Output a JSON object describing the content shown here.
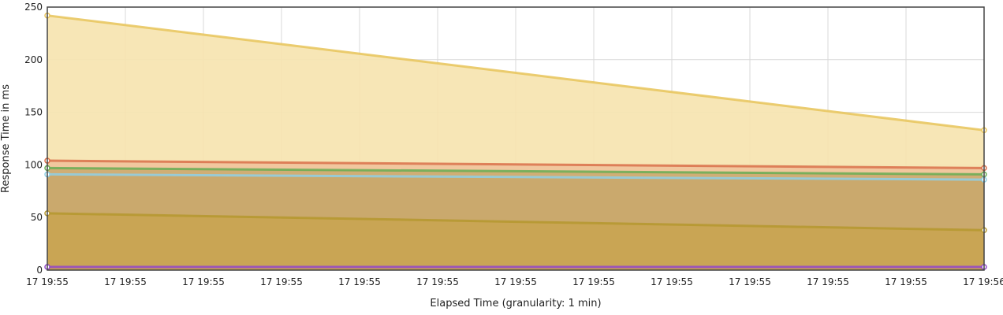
{
  "chart_data": {
    "type": "area",
    "title": "",
    "xlabel": "Elapsed Time (granularity: 1 min)",
    "ylabel": "Response Time in ms",
    "ylim": [
      0,
      250
    ],
    "yticks": [
      0,
      50,
      100,
      150,
      200,
      250
    ],
    "xtick_labels": [
      "17 19:55",
      "17 19:55",
      "17 19:55",
      "17 19:55",
      "17 19:55",
      "17 19:55",
      "17 19:55",
      "17 19:55",
      "17 19:55",
      "17 19:55",
      "17 19:55",
      "17 19:55",
      "17 19:56"
    ],
    "x": [
      "17 19:55",
      "17 19:56"
    ],
    "grid": true,
    "series": [
      {
        "color": "#e8c45a",
        "fill": "#f6e4b0",
        "values": [
          242,
          133
        ]
      },
      {
        "color": "#d9704a",
        "fill": "#f0c49c",
        "values": [
          104,
          97
        ]
      },
      {
        "color": "#69ad55",
        "fill": "#cdab72",
        "values": [
          97,
          91
        ]
      },
      {
        "color": "#8fd0e6",
        "fill": "#c9a86d",
        "values": [
          91,
          86
        ]
      },
      {
        "color": "#b5982f",
        "fill": "#c9a552",
        "values": [
          54,
          38
        ]
      },
      {
        "color": "#9346c9",
        "fill": "#c6a050",
        "values": [
          3,
          3
        ]
      }
    ]
  }
}
